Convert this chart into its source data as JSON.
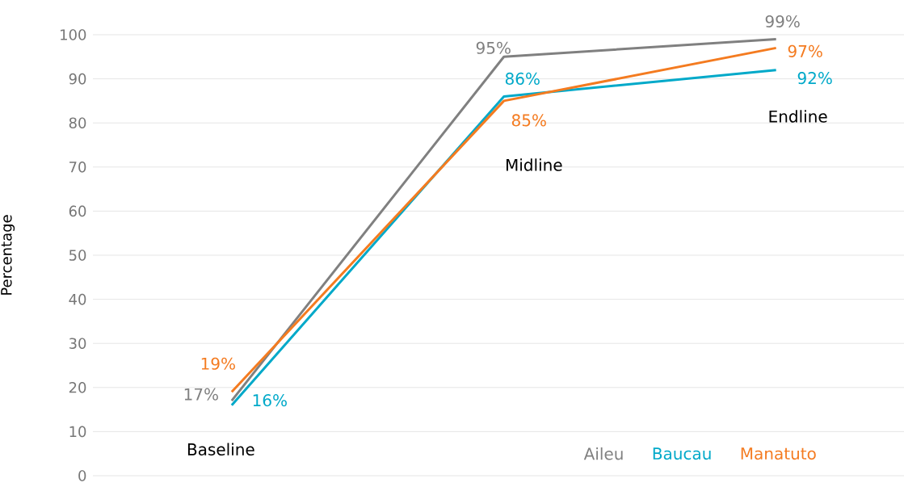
{
  "chart_data": {
    "type": "line",
    "ylabel": "Percentage",
    "categories": [
      "Baseline",
      "Midline",
      "Endline"
    ],
    "series": [
      {
        "name": "Aileu",
        "color": "#808080",
        "values": [
          17,
          95,
          99
        ],
        "value_labels": [
          "17%",
          "95%",
          "99%"
        ]
      },
      {
        "name": "Baucau",
        "color": "#00a9c9",
        "values": [
          16,
          86,
          92
        ],
        "value_labels": [
          "16%",
          "86%",
          "92%"
        ]
      },
      {
        "name": "Manatuto",
        "color": "#f47b20",
        "values": [
          19,
          85,
          97
        ],
        "value_labels": [
          "19%",
          "85%",
          "97%"
        ]
      }
    ],
    "ylim": [
      0,
      100
    ],
    "yticks": [
      0,
      10,
      20,
      30,
      40,
      50,
      60,
      70,
      80,
      90,
      100
    ],
    "grid": "y",
    "legend": "bottom right",
    "marker": "none",
    "line_style": "solid"
  }
}
